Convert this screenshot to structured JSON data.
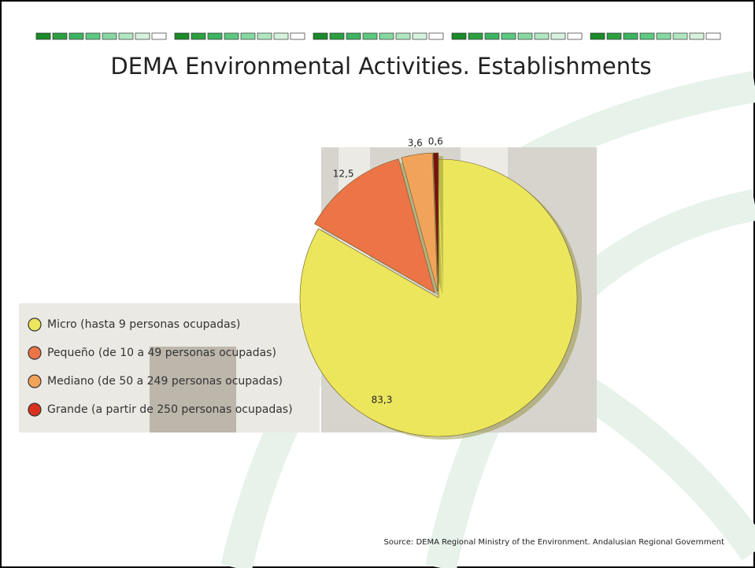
{
  "chart_data": {
    "type": "pie",
    "title": "DEMA Environmental Activities. Establishments",
    "categories": [
      "Micro (hasta 9 personas ocupadas)",
      "Pequeño (de 10 a 49 personas ocupadas)",
      "Mediano (de 50 a 249 personas ocupadas)",
      "Grande (a partir de 250 personas ocupadas)"
    ],
    "values": [
      83.3,
      12.5,
      3.6,
      0.6
    ],
    "value_labels": [
      "83,3",
      "12,5",
      "3,6",
      "0,6"
    ],
    "colors": [
      "#ebe65c",
      "#ec7447",
      "#f2a35a",
      "#7a1010"
    ],
    "legend_colors": [
      "#ebe65c",
      "#ec7447",
      "#f2a35a",
      "#d8321e"
    ],
    "source": "Source: DEMA Regional Ministry of the Environment. Andalusian Regional Government"
  }
}
